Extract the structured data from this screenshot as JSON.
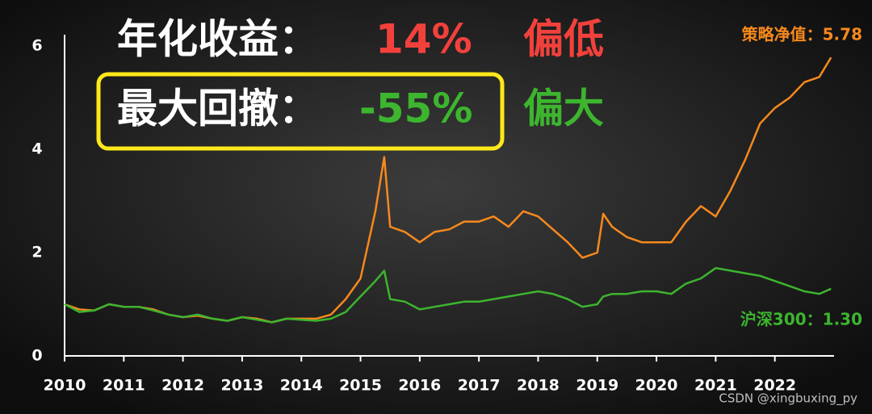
{
  "chart_data": {
    "type": "line",
    "callouts": [
      {
        "label": "年化收益：",
        "value": "14%",
        "verdict": "偏低",
        "color": "#f2413c"
      },
      {
        "label": "最大回撤：",
        "value": "-55%",
        "verdict": "偏大",
        "color": "#3db52f",
        "box_color": "#ffe81a"
      }
    ],
    "x": [
      2010,
      2010.25,
      2010.5,
      2010.75,
      2011,
      2011.25,
      2011.5,
      2011.75,
      2012,
      2012.25,
      2012.5,
      2012.75,
      2013,
      2013.25,
      2013.5,
      2013.75,
      2014,
      2014.25,
      2014.5,
      2014.75,
      2015,
      2015.25,
      2015.4,
      2015.5,
      2015.75,
      2016,
      2016.25,
      2016.5,
      2016.75,
      2017,
      2017.25,
      2017.5,
      2017.75,
      2018,
      2018.25,
      2018.5,
      2018.75,
      2019,
      2019.1,
      2019.25,
      2019.5,
      2019.75,
      2020,
      2020.25,
      2020.5,
      2020.75,
      2021,
      2021.25,
      2021.5,
      2021.75,
      2022,
      2022.25,
      2022.5,
      2022.75,
      2022.95
    ],
    "series": [
      {
        "color": "#f7891c",
        "values": [
          1.0,
          0.9,
          0.88,
          1.0,
          0.95,
          0.95,
          0.9,
          0.8,
          0.75,
          0.78,
          0.72,
          0.68,
          0.75,
          0.72,
          0.65,
          0.72,
          0.72,
          0.72,
          0.8,
          1.1,
          1.5,
          2.8,
          3.85,
          2.5,
          2.4,
          2.2,
          2.4,
          2.45,
          2.6,
          2.6,
          2.7,
          2.5,
          2.8,
          2.7,
          2.45,
          2.2,
          1.9,
          2.0,
          2.75,
          2.5,
          2.3,
          2.2,
          2.2,
          2.2,
          2.6,
          2.9,
          2.7,
          3.2,
          3.8,
          4.5,
          4.8,
          5.0,
          5.3,
          5.4,
          5.78
        ]
      },
      {
        "color": "#3db52f",
        "values": [
          1.0,
          0.85,
          0.88,
          1.0,
          0.95,
          0.95,
          0.88,
          0.8,
          0.75,
          0.8,
          0.72,
          0.68,
          0.75,
          0.7,
          0.65,
          0.72,
          0.7,
          0.68,
          0.72,
          0.85,
          1.15,
          1.45,
          1.65,
          1.1,
          1.05,
          0.9,
          0.95,
          1.0,
          1.05,
          1.05,
          1.1,
          1.15,
          1.2,
          1.25,
          1.2,
          1.1,
          0.95,
          1.0,
          1.15,
          1.2,
          1.2,
          1.25,
          1.25,
          1.2,
          1.4,
          1.5,
          1.7,
          1.65,
          1.6,
          1.55,
          1.45,
          1.35,
          1.25,
          1.2,
          1.3
        ]
      }
    ],
    "annotations": [
      "策略净值：5.78",
      "沪深300：1.30"
    ],
    "xlim": [
      2010,
      2023
    ],
    "xticks": [
      2010,
      2011,
      2012,
      2013,
      2014,
      2015,
      2016,
      2017,
      2018,
      2019,
      2020,
      2021,
      2022
    ],
    "ylim": [
      0,
      6
    ],
    "yticks": [
      0,
      2,
      4,
      6
    ]
  },
  "watermark": "CSDN @xingbuxing_py"
}
